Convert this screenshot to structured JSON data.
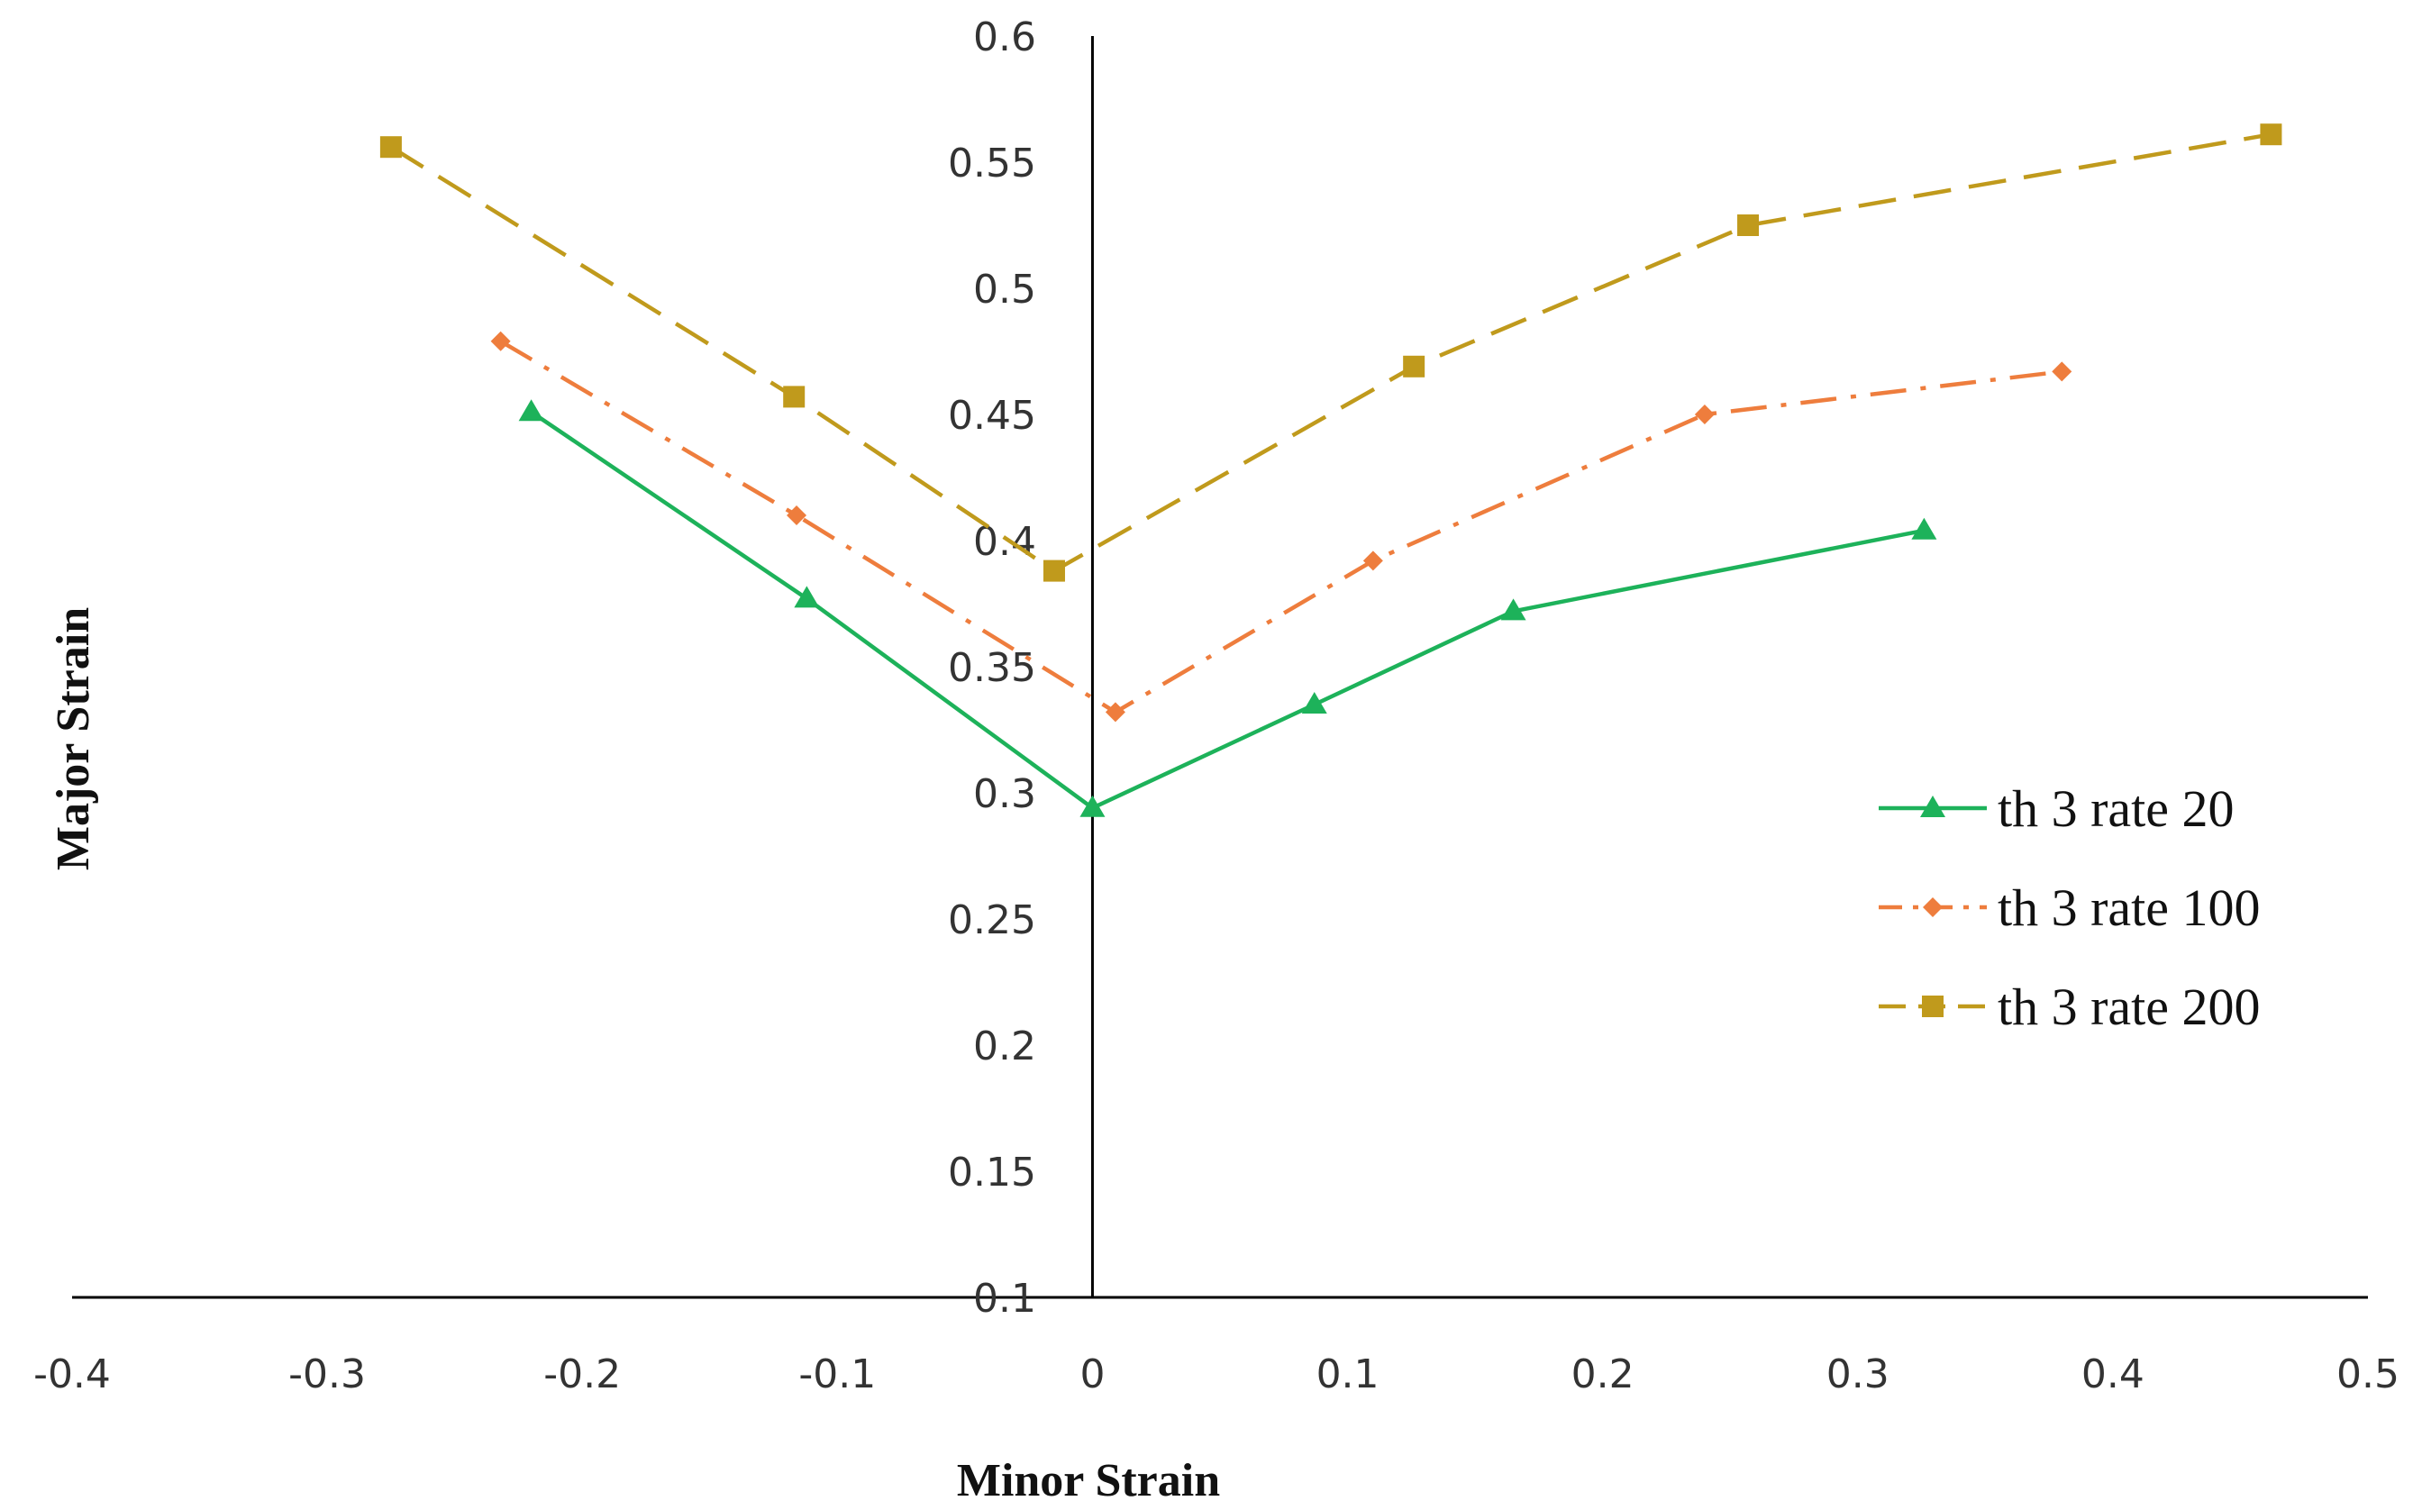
{
  "chart_data": {
    "type": "line",
    "title": "",
    "xlabel": "Minor Strain",
    "ylabel": "Major Strain",
    "xlim": [
      -0.4,
      0.5
    ],
    "ylim": [
      0.1,
      0.6
    ],
    "x_axis_crosses_y_at": 0.1,
    "y_axis_crosses_x_at": 0,
    "x_ticks": [
      -0.4,
      -0.3,
      -0.2,
      -0.1,
      0,
      0.1,
      0.2,
      0.3,
      0.4,
      0.5
    ],
    "x_tick_labels": [
      "-0.4",
      "-0.3",
      "-0.2",
      "-0.1",
      "0",
      "0.1",
      "0.2",
      "0.3",
      "0.4",
      "0.5"
    ],
    "y_ticks": [
      0.1,
      0.15,
      0.2,
      0.25,
      0.3,
      0.35,
      0.4,
      0.45,
      0.5,
      0.55,
      0.6
    ],
    "y_tick_labels": [
      "0.1",
      "0.15",
      "0.2",
      "0.25",
      "0.3",
      "0.35",
      "0.4",
      "0.45",
      "0.5",
      "0.55",
      "0.6"
    ],
    "grid": false,
    "legend_position": "right",
    "series": [
      {
        "name": "th 3 rate 20",
        "color": "#1db25a",
        "line_style": "solid",
        "marker": "triangle",
        "x": [
          -0.22,
          -0.112,
          0,
          0.087,
          0.165,
          0.326
        ],
        "y": [
          0.451,
          0.377,
          0.294,
          0.335,
          0.372,
          0.404
        ]
      },
      {
        "name": "th 3 rate 100",
        "color": "#ee7d3d",
        "line_style": "dash-dot",
        "marker": "diamond",
        "x": [
          -0.232,
          -0.116,
          0.009,
          0.11,
          0.24,
          0.38
        ],
        "y": [
          0.479,
          0.41,
          0.332,
          0.392,
          0.45,
          0.467
        ]
      },
      {
        "name": "th 3 rate 200",
        "color": "#c09a1c",
        "line_style": "dashed",
        "marker": "square",
        "x": [
          -0.275,
          -0.117,
          -0.015,
          0.126,
          0.257,
          0.462
        ],
        "y": [
          0.556,
          0.457,
          0.388,
          0.469,
          0.525,
          0.561
        ]
      }
    ]
  }
}
